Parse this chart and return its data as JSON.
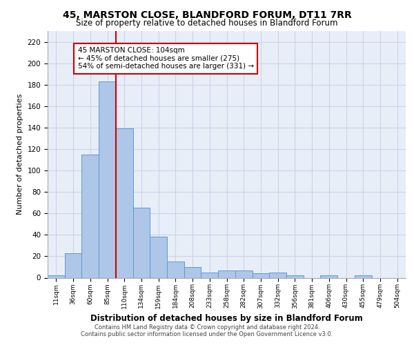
{
  "title_line1": "45, MARSTON CLOSE, BLANDFORD FORUM, DT11 7RR",
  "title_line2": "Size of property relative to detached houses in Blandford Forum",
  "xlabel": "Distribution of detached houses by size in Blandford Forum",
  "ylabel": "Number of detached properties",
  "footer_line1": "Contains HM Land Registry data © Crown copyright and database right 2024.",
  "footer_line2": "Contains public sector information licensed under the Open Government Licence v3.0.",
  "bin_labels": [
    "11sqm",
    "36sqm",
    "60sqm",
    "85sqm",
    "110sqm",
    "134sqm",
    "159sqm",
    "184sqm",
    "208sqm",
    "233sqm",
    "258sqm",
    "282sqm",
    "307sqm",
    "332sqm",
    "356sqm",
    "381sqm",
    "406sqm",
    "430sqm",
    "455sqm",
    "479sqm",
    "504sqm"
  ],
  "bar_heights": [
    2,
    23,
    115,
    183,
    139,
    65,
    38,
    15,
    10,
    5,
    7,
    7,
    4,
    5,
    2,
    0,
    2,
    0,
    2,
    0,
    0
  ],
  "bar_color": "#aec6e8",
  "bar_edge_color": "#5b9bd5",
  "bar_width": 1.0,
  "vline_x": 3.5,
  "vline_color": "#cc0000",
  "ylim": [
    0,
    230
  ],
  "yticks": [
    0,
    20,
    40,
    60,
    80,
    100,
    120,
    140,
    160,
    180,
    200,
    220
  ],
  "annotation_text": "45 MARSTON CLOSE: 104sqm\n← 45% of detached houses are smaller (275)\n54% of semi-detached houses are larger (331) →",
  "annotation_box_color": "#ffffff",
  "annotation_box_edge_color": "#cc0000",
  "grid_color": "#c8d4e8",
  "background_color": "#e8eef8"
}
